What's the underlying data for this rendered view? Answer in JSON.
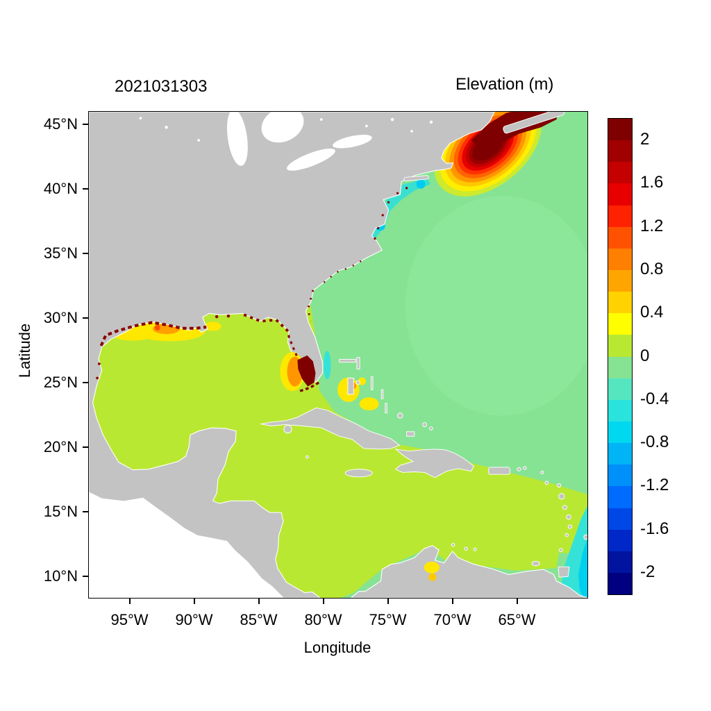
{
  "figure": {
    "run_title": "2021031303",
    "colorbar_title": "Elevation (m)",
    "xlabel": "Longitude",
    "ylabel": "Latitude"
  },
  "axes": {
    "lat_tick_labels": [
      "45°N",
      "40°N",
      "35°N",
      "30°N",
      "25°N",
      "20°N",
      "15°N",
      "10°N"
    ],
    "lat_tick_values": [
      45,
      40,
      35,
      30,
      25,
      20,
      15,
      10
    ],
    "lon_tick_labels": [
      "95°W",
      "90°W",
      "85°W",
      "80°W",
      "75°W",
      "70°W",
      "65°W"
    ],
    "lon_tick_values": [
      -95,
      -90,
      -85,
      -80,
      -75,
      -70,
      -65
    ],
    "lon_range": [
      -98.2,
      -59.6
    ],
    "lat_range": [
      8.4,
      46
    ]
  },
  "colorbar": {
    "tick_labels": [
      "2",
      "1.6",
      "1.2",
      "0.8",
      "0.4",
      "0",
      "-0.4",
      "-0.8",
      "-1.2",
      "-1.6",
      "-2"
    ],
    "tick_values": [
      2,
      1.6,
      1.2,
      0.8,
      0.4,
      0,
      -0.4,
      -0.8,
      -1.2,
      -1.6,
      -2
    ],
    "value_max": 2.2,
    "value_min": -2.2,
    "band_step": 0.2,
    "band_colors": [
      "#7f0000",
      "#a00000",
      "#c40000",
      "#e80000",
      "#ff2200",
      "#ff5200",
      "#ff7f00",
      "#ffa500",
      "#ffd200",
      "#ffff00",
      "#b9e832",
      "#86e393",
      "#55e6c0",
      "#2ae3dc",
      "#00d8f0",
      "#00b4f5",
      "#0090fa",
      "#006cff",
      "#0048e6",
      "#0028c8",
      "#0014a0",
      "#000080"
    ]
  },
  "map_colors": {
    "land": "#c3c3c3",
    "no_data_pacific": "#ffffff",
    "ocean_band_0_to_0p2": "#b9e832",
    "ocean_band_m0p2_to_0": "#86e393",
    "surge_core": "#7f0000"
  },
  "chart_data": {
    "type": "heatmap",
    "title": "Elevation (m)",
    "run_label": "2021031303",
    "xlabel": "Longitude",
    "ylabel": "Latitude",
    "x_range": [
      "98.2W",
      "59.6W"
    ],
    "y_range": [
      "8.4N",
      "46N"
    ],
    "color_scale_m": [
      -2.2,
      2.2
    ],
    "contour_interval_m": 0.2,
    "features": [
      {
        "region": "Gulf of Maine / Bay of Fundy surge maximum",
        "lon": "68W",
        "lat": "44N",
        "elevation_m": 2.2
      },
      {
        "region": "Gulf of Mexico open water",
        "elevation_m": 0.1
      },
      {
        "region": "Caribbean Sea",
        "elevation_m": 0.1
      },
      {
        "region": "Open North Atlantic",
        "elevation_m": -0.1
      },
      {
        "region": "Louisiana-Texas shelf band",
        "elevation_m": 0.6
      },
      {
        "region": "Southwest Florida / Everglades flooded zone",
        "elevation_m": 2.2
      },
      {
        "region": "Mid-Atlantic Bight coastal strip",
        "elevation_m": -0.5
      },
      {
        "region": "Bahamas banks patches",
        "elevation_m": 0.5
      },
      {
        "region": "Southeast Caribbean near Trinidad",
        "elevation_m": -0.6
      },
      {
        "region": "Northern Gulf coast wet/dry speckle front",
        "elevation_m": 2.2
      },
      {
        "region": "Land",
        "note": "gray, no water data"
      },
      {
        "region": "Pacific side",
        "note": "white, outside model domain"
      }
    ]
  }
}
